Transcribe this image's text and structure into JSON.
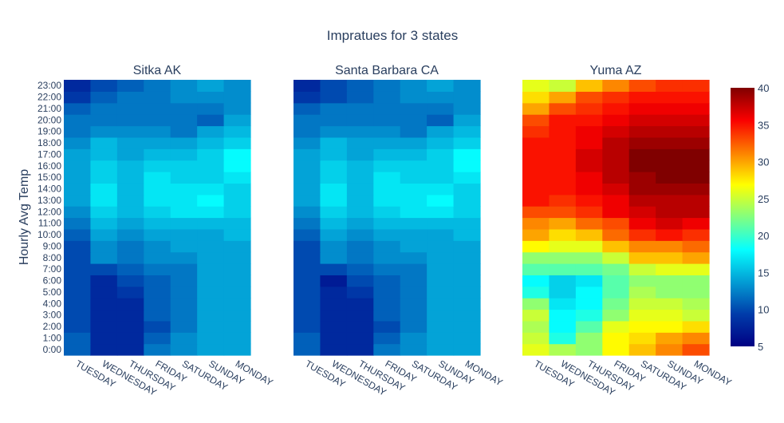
{
  "chart_data": {
    "type": "heatmap",
    "title": "Impratues for 3 states",
    "ylabel": "Hourly Avg Temp",
    "x_categories": [
      "TUESDAY",
      "WEDNESDAY",
      "THURSDAY",
      "FRIDAY",
      "SATURDAY",
      "SUNDAY",
      "MONDAY"
    ],
    "y_categories": [
      "0:00",
      "1:00",
      "2:00",
      "3:00",
      "4:00",
      "5:00",
      "6:00",
      "7:00",
      "8:00",
      "9:00",
      "10:00",
      "11:00",
      "12:00",
      "13:00",
      "14:00",
      "15:00",
      "16:00",
      "17:00",
      "18:00",
      "19:00",
      "20:00",
      "21:00",
      "22:00",
      "23:00"
    ],
    "colorscale": "jet",
    "colorbar": {
      "min": 5,
      "max": 40,
      "ticks": [
        5,
        10,
        15,
        20,
        25,
        30,
        35,
        40
      ]
    },
    "panels": [
      {
        "title": "Sitka AK",
        "z": [
          [
            11,
            8,
            8,
            12,
            13,
            14,
            14
          ],
          [
            11,
            8,
            8,
            11,
            13,
            14,
            14
          ],
          [
            10,
            8,
            8,
            10,
            12,
            14,
            14
          ],
          [
            10,
            8,
            8,
            11,
            12,
            14,
            14
          ],
          [
            10,
            8,
            8,
            11,
            12,
            14,
            14
          ],
          [
            10,
            8,
            9,
            11,
            12,
            14,
            14
          ],
          [
            10,
            8,
            10,
            11,
            12,
            14,
            14
          ],
          [
            10,
            10,
            11,
            12,
            12,
            14,
            14
          ],
          [
            10,
            13,
            12,
            13,
            13,
            14,
            14
          ],
          [
            10,
            13,
            12,
            13,
            14,
            14,
            14
          ],
          [
            11,
            14,
            13,
            14,
            14,
            14,
            15
          ],
          [
            12,
            15,
            14,
            15,
            15,
            15,
            15
          ],
          [
            13,
            16,
            15,
            16,
            17,
            17,
            16
          ],
          [
            14,
            17,
            15,
            17,
            17,
            18,
            16
          ],
          [
            14,
            17,
            15,
            17,
            17,
            17,
            16
          ],
          [
            14,
            16,
            15,
            17,
            16,
            16,
            17
          ],
          [
            14,
            16,
            15,
            16,
            16,
            16,
            18
          ],
          [
            14,
            15,
            14,
            15,
            15,
            16,
            18
          ],
          [
            13,
            15,
            14,
            14,
            14,
            15,
            16
          ],
          [
            12,
            13,
            13,
            13,
            12,
            14,
            15
          ],
          [
            12,
            12,
            12,
            12,
            12,
            11,
            14
          ],
          [
            11,
            12,
            12,
            12,
            12,
            12,
            13
          ],
          [
            9,
            11,
            12,
            12,
            13,
            13,
            13
          ],
          [
            8,
            10,
            11,
            12,
            13,
            14,
            13
          ]
        ]
      },
      {
        "title": "Santa Barbara CA",
        "z": [
          [
            11,
            8,
            8,
            12,
            13,
            14,
            14
          ],
          [
            11,
            8,
            8,
            11,
            13,
            14,
            14
          ],
          [
            10,
            8,
            8,
            10,
            12,
            14,
            14
          ],
          [
            10,
            8,
            8,
            11,
            12,
            14,
            14
          ],
          [
            10,
            8,
            8,
            11,
            12,
            14,
            14
          ],
          [
            10,
            8,
            9,
            11,
            12,
            14,
            14
          ],
          [
            10,
            7,
            10,
            11,
            12,
            14,
            14
          ],
          [
            10,
            10,
            11,
            12,
            12,
            14,
            14
          ],
          [
            10,
            13,
            12,
            13,
            13,
            14,
            14
          ],
          [
            10,
            13,
            12,
            13,
            14,
            14,
            14
          ],
          [
            11,
            14,
            13,
            14,
            14,
            14,
            15
          ],
          [
            12,
            15,
            14,
            15,
            15,
            15,
            15
          ],
          [
            13,
            16,
            15,
            16,
            17,
            17,
            16
          ],
          [
            14,
            17,
            15,
            17,
            17,
            18,
            16
          ],
          [
            14,
            17,
            15,
            17,
            17,
            17,
            16
          ],
          [
            14,
            16,
            15,
            17,
            16,
            16,
            17
          ],
          [
            14,
            16,
            15,
            16,
            16,
            16,
            18
          ],
          [
            14,
            15,
            14,
            15,
            15,
            16,
            18
          ],
          [
            13,
            15,
            14,
            14,
            14,
            15,
            16
          ],
          [
            12,
            13,
            13,
            13,
            12,
            14,
            15
          ],
          [
            12,
            12,
            12,
            12,
            12,
            11,
            14
          ],
          [
            11,
            12,
            12,
            12,
            12,
            12,
            13
          ],
          [
            9,
            10,
            11,
            12,
            13,
            13,
            13
          ],
          [
            8,
            10,
            11,
            12,
            13,
            14,
            13
          ]
        ]
      },
      {
        "title": "Yuma AZ",
        "z": [
          [
            26,
            24,
            23,
            27,
            29,
            31,
            33
          ],
          [
            25,
            19,
            23,
            27,
            28,
            30,
            31
          ],
          [
            24,
            18,
            21,
            26,
            27,
            27,
            28
          ],
          [
            25,
            18,
            19,
            23,
            26,
            26,
            25
          ],
          [
            23,
            17,
            18,
            22,
            25,
            25,
            24
          ],
          [
            19,
            16,
            18,
            21,
            24,
            23,
            23
          ],
          [
            18,
            16,
            17,
            21,
            23,
            23,
            23
          ],
          [
            21,
            21,
            21,
            22,
            25,
            26,
            26
          ],
          [
            23,
            23,
            23,
            25,
            29,
            29,
            30
          ],
          [
            27,
            26,
            26,
            29,
            31,
            31,
            32
          ],
          [
            30,
            28,
            29,
            32,
            34,
            35,
            34
          ],
          [
            31,
            30,
            32,
            33,
            36,
            37,
            36
          ],
          [
            33,
            33,
            34,
            36,
            37,
            38,
            38
          ],
          [
            35,
            34,
            35,
            36,
            38,
            38,
            38
          ],
          [
            35,
            35,
            36,
            37,
            39,
            39,
            39
          ],
          [
            35,
            35,
            36,
            38,
            39,
            40,
            40
          ],
          [
            35,
            35,
            37,
            38,
            40,
            40,
            40
          ],
          [
            35,
            35,
            37,
            38,
            40,
            40,
            40
          ],
          [
            35,
            35,
            36,
            38,
            39,
            39,
            39
          ],
          [
            34,
            35,
            36,
            37,
            38,
            38,
            38
          ],
          [
            33,
            35,
            35,
            36,
            37,
            37,
            37
          ],
          [
            30,
            33,
            34,
            35,
            36,
            36,
            36
          ],
          [
            28,
            30,
            33,
            34,
            35,
            35,
            35
          ],
          [
            26,
            25,
            29,
            31,
            33,
            34,
            34
          ]
        ]
      }
    ]
  }
}
